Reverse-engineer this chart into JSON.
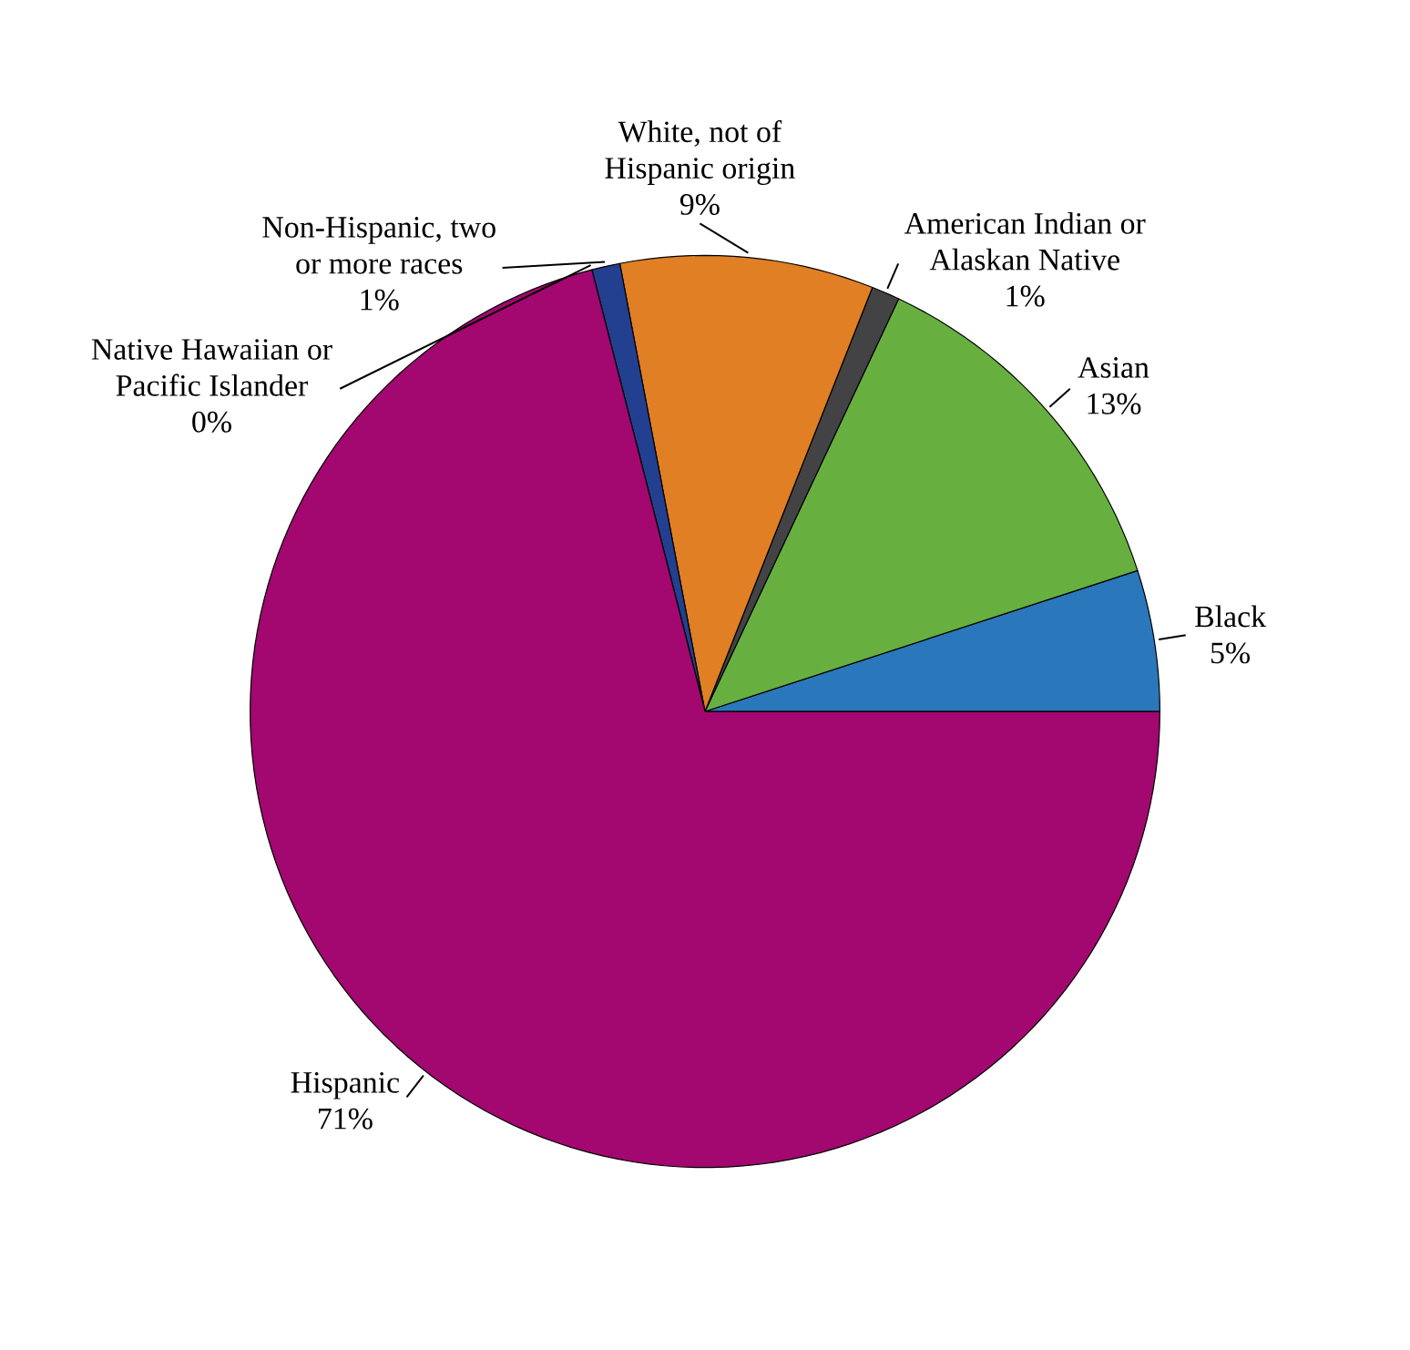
{
  "chart_data": {
    "type": "pie",
    "categories": [
      "Black",
      "Asian",
      "American Indian or Alaskan Native",
      "White, not of Hispanic origin",
      "Non-Hispanic, two or more races",
      "Native Hawaiian or Pacific Islander",
      "Hispanic"
    ],
    "values": [
      5,
      13,
      1,
      9,
      1,
      0,
      71
    ],
    "value_labels": [
      "5%",
      "13%",
      "1%",
      "9%",
      "1%",
      "0%",
      "71%"
    ],
    "colors": [
      "#2a77bb",
      "#67b040",
      "#434345",
      "#e07f24",
      "#233f8f",
      "#dcdcdc",
      "#a30770"
    ]
  }
}
